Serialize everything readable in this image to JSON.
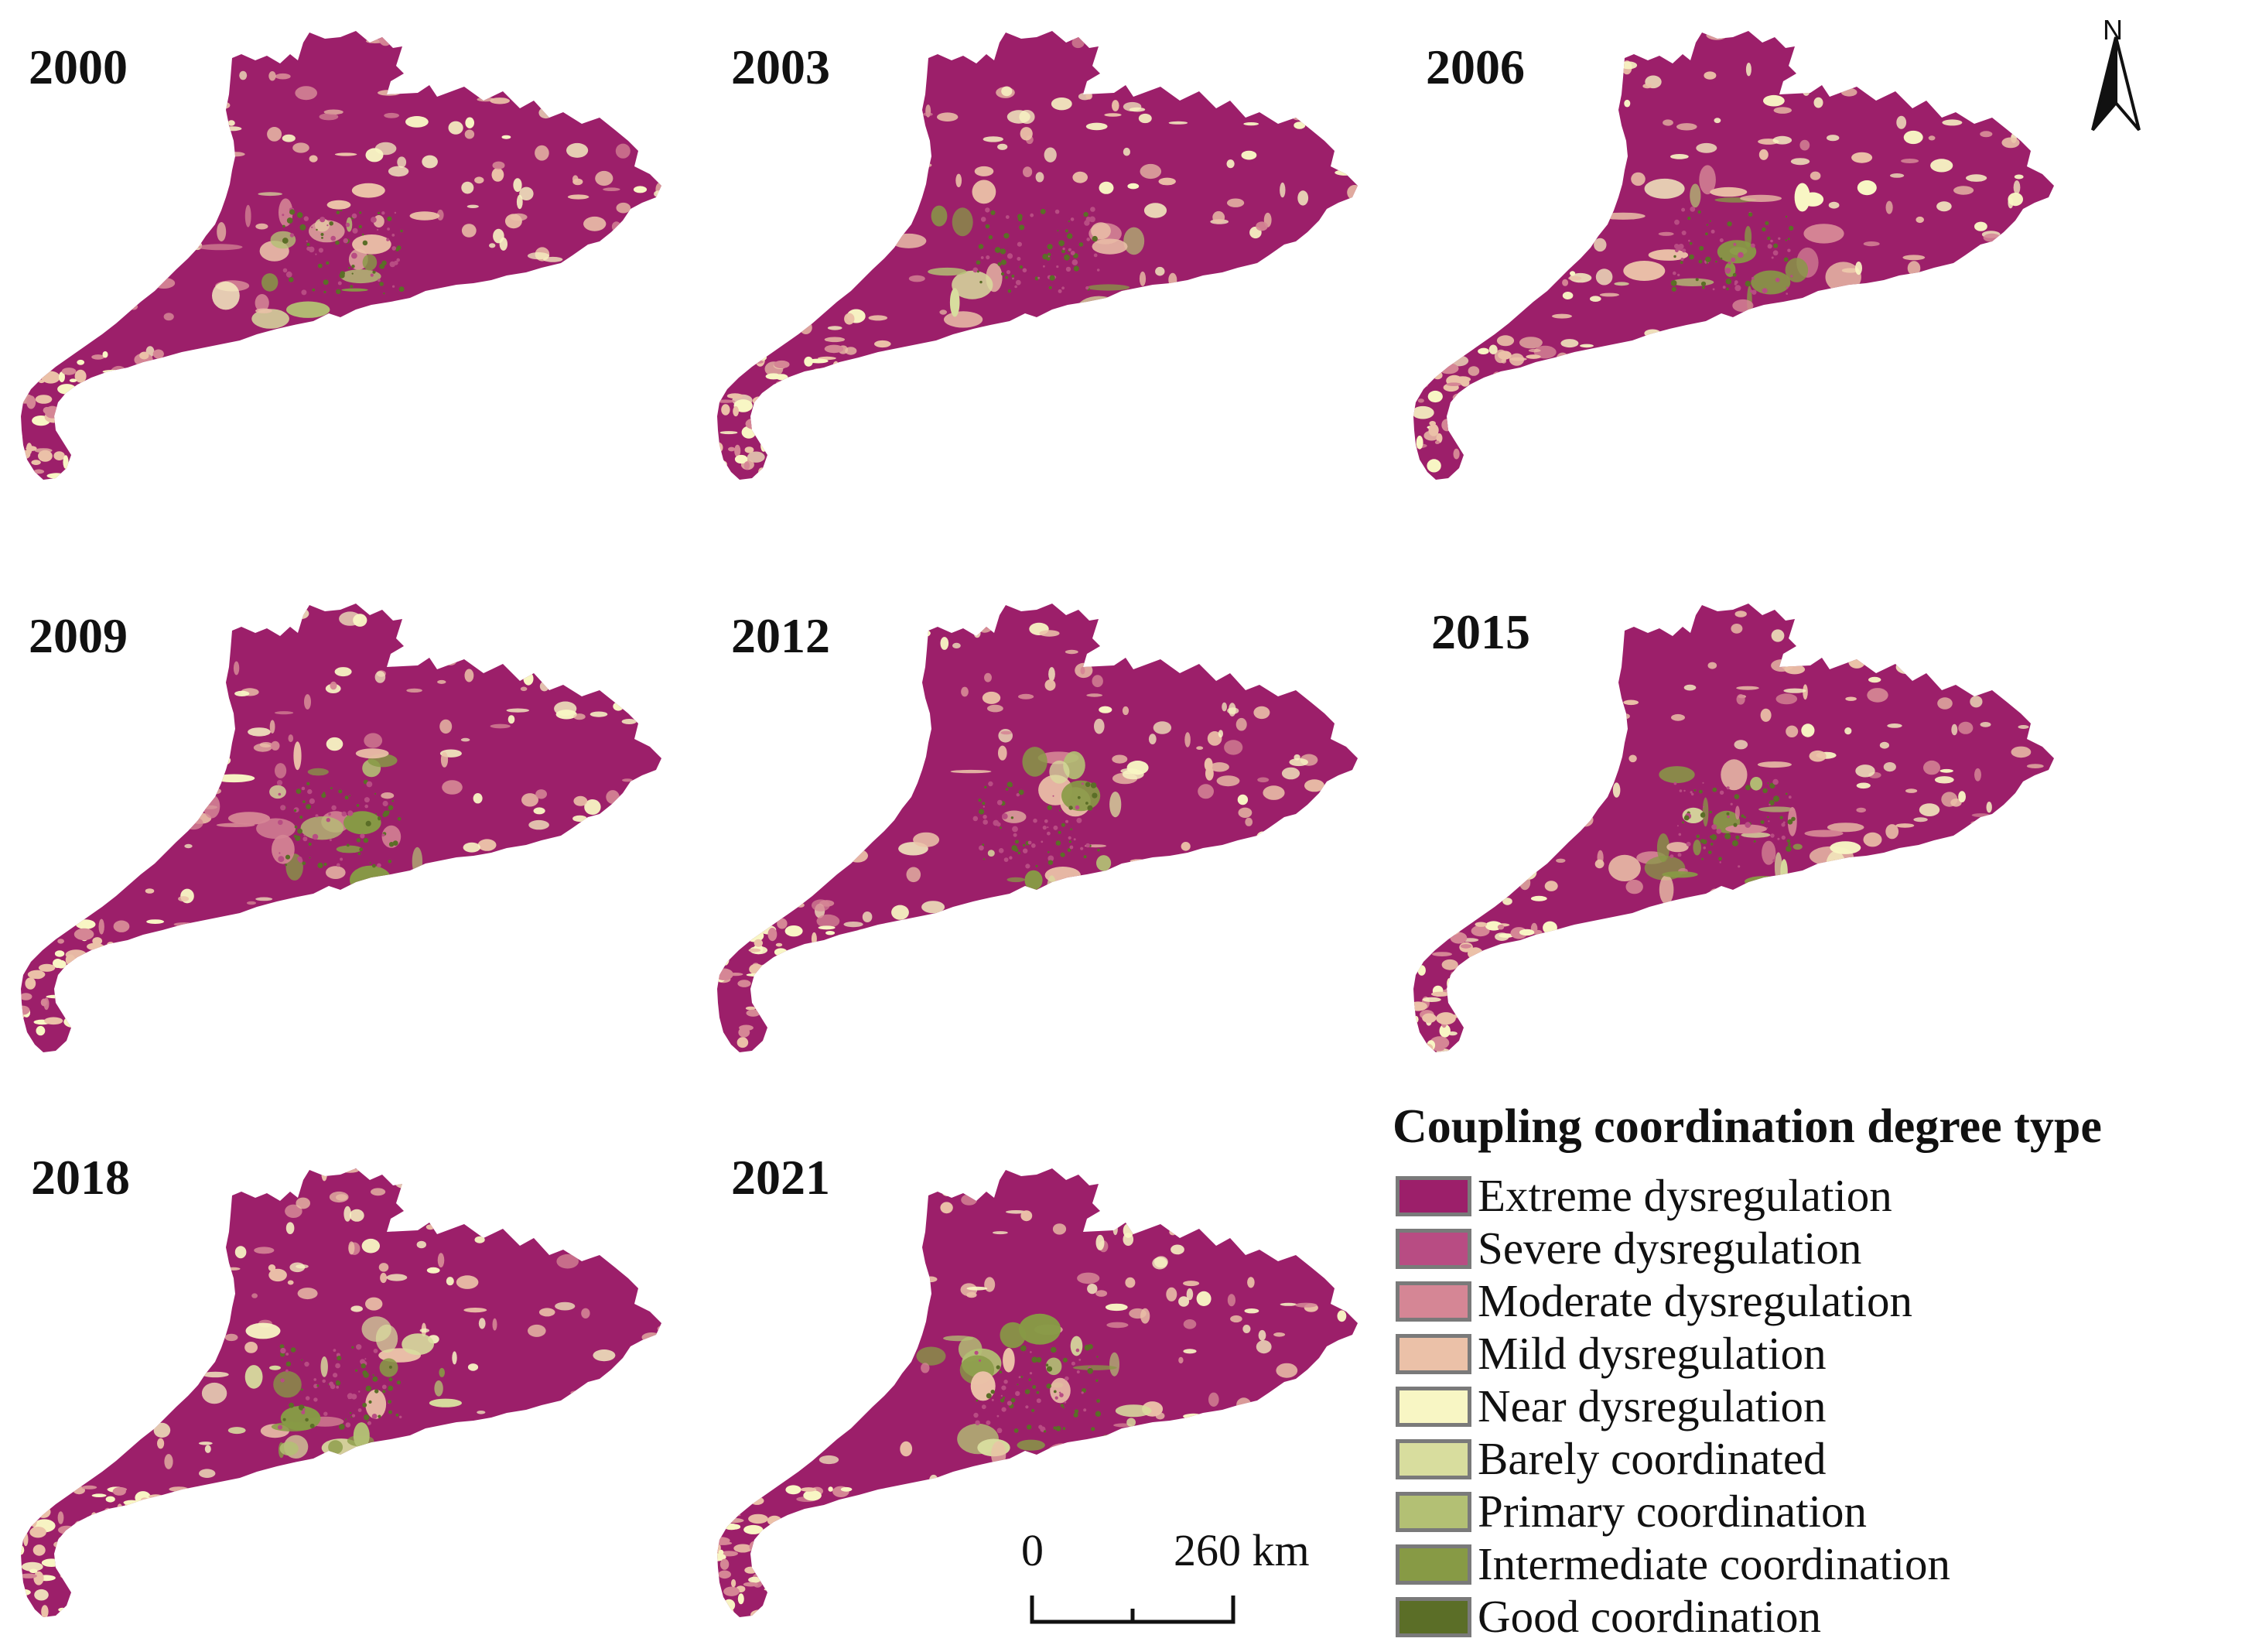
{
  "panels": [
    {
      "year": "2000",
      "green": 0.2
    },
    {
      "year": "2003",
      "green": 0.28
    },
    {
      "year": "2006",
      "green": 0.3
    },
    {
      "year": "2009",
      "green": 0.42
    },
    {
      "year": "2012",
      "green": 0.44
    },
    {
      "year": "2015",
      "green": 0.4
    },
    {
      "year": "2018",
      "green": 0.6
    },
    {
      "year": "2021",
      "green": 0.55
    }
  ],
  "north": {
    "label": "N"
  },
  "legend": {
    "title": "Coupling coordination degree type",
    "items": [
      {
        "label": "Extreme dysregulation",
        "color": "#9c1f6a"
      },
      {
        "label": "Severe dysregulation",
        "color": "#b84c83"
      },
      {
        "label": "Moderate dysregulation",
        "color": "#d58695"
      },
      {
        "label": "Mild dysregulation",
        "color": "#ebc1a8"
      },
      {
        "label": "Near dysregulation",
        "color": "#f8f6c4"
      },
      {
        "label": "Barely coordinated",
        "color": "#d8dd9e"
      },
      {
        "label": "Primary coordination",
        "color": "#b3c074"
      },
      {
        "label": "Intermediate coordination",
        "color": "#879a45"
      },
      {
        "label": "Good coordination",
        "color": "#5b6e27"
      }
    ]
  },
  "scale": {
    "zero": "0",
    "end": "260 km"
  }
}
